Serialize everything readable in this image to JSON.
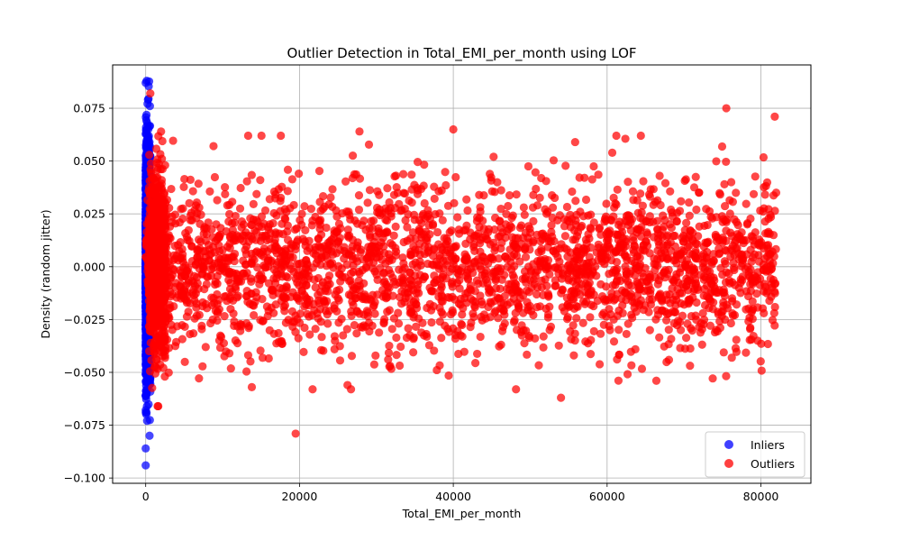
{
  "chart_data": {
    "type": "scatter",
    "title": "Outlier Detection in Total_EMI_per_month using LOF",
    "xlabel": "Total_EMI_per_month",
    "ylabel": "Density (random jitter)",
    "xlim": [
      -4300,
      86500
    ],
    "ylim": [
      -0.1025,
      0.0955
    ],
    "x_ticks": [
      0,
      20000,
      40000,
      60000,
      80000
    ],
    "x_tick_labels": [
      "0",
      "20000",
      "40000",
      "60000",
      "80000"
    ],
    "y_ticks": [
      -0.1,
      -0.075,
      -0.05,
      -0.025,
      0.0,
      0.025,
      0.05,
      0.075
    ],
    "y_tick_labels": [
      "−0.100",
      "−0.075",
      "−0.050",
      "−0.025",
      "0.000",
      "0.025",
      "0.050",
      "0.075"
    ],
    "grid": true,
    "legend_position": "lower-right",
    "series": [
      {
        "name": "Inliers",
        "color": "#0000ff",
        "x_range": [
          0,
          600
        ],
        "y_std": 0.025,
        "n_points": 2500,
        "notable_points": [
          [
            0,
            0.087
          ],
          [
            0,
            -0.094
          ],
          [
            0,
            -0.086
          ],
          [
            300,
            0.079
          ],
          [
            500,
            -0.08
          ]
        ]
      },
      {
        "name": "Outliers",
        "color": "#ff0000",
        "x_range": [
          0,
          82000
        ],
        "y_std": 0.02,
        "n_points": 3400,
        "notable_points": [
          [
            600,
            0.082
          ],
          [
            75500,
            0.075
          ],
          [
            81800,
            0.071
          ],
          [
            19500,
            -0.079
          ],
          [
            54000,
            -0.062
          ],
          [
            13800,
            -0.057
          ],
          [
            40000,
            0.065
          ],
          [
            27800,
            0.064
          ]
        ]
      }
    ]
  }
}
